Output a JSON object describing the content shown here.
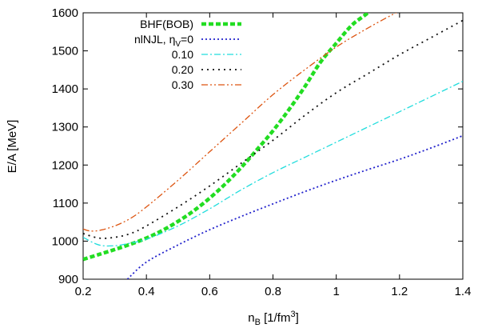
{
  "chart_data": {
    "type": "line",
    "xlabel": "n_B [1/fm^3]",
    "ylabel": "E/A [MeV]",
    "xlim": [
      0.2,
      1.4
    ],
    "ylim": [
      900,
      1600
    ],
    "xticks": [
      0.2,
      0.4,
      0.6,
      0.8,
      1.0,
      1.2,
      1.4
    ],
    "xtick_labels": [
      "0.2",
      "0.4",
      "0.6",
      "0.8",
      "1",
      "1.2",
      "1.4"
    ],
    "yticks": [
      900,
      1000,
      1100,
      1200,
      1300,
      1400,
      1500,
      1600
    ],
    "ytick_labels": [
      "900",
      "1000",
      "1100",
      "1200",
      "1300",
      "1400",
      "1500",
      "1600"
    ],
    "grid": false,
    "legend_position": "top-left",
    "series": [
      {
        "name": "BHF(BOB)",
        "color": "#22dd22",
        "dash": "dotted-thick",
        "x": [
          0.2,
          0.25,
          0.3,
          0.35,
          0.4,
          0.45,
          0.5,
          0.55,
          0.6,
          0.65,
          0.7,
          0.75,
          0.8,
          0.85,
          0.9,
          0.95,
          1.0,
          1.05,
          1.1,
          1.15,
          1.2
        ],
        "y": [
          952,
          965,
          978,
          992,
          1008,
          1028,
          1052,
          1080,
          1113,
          1151,
          1194,
          1241,
          1290,
          1345,
          1405,
          1470,
          1520,
          1568,
          1600,
          1640,
          1680
        ]
      },
      {
        "name": "nlNJL, η_V=0",
        "color": "#2222cc",
        "dash": "dotted",
        "x": [
          0.34,
          0.4,
          0.5,
          0.6,
          0.7,
          0.8,
          0.9,
          1.0,
          1.1,
          1.2,
          1.3,
          1.4
        ],
        "y": [
          900,
          945,
          990,
          1030,
          1065,
          1098,
          1130,
          1160,
          1188,
          1215,
          1245,
          1277
        ]
      },
      {
        "name": "0.10",
        "color": "#22dddd",
        "dash": "dash-dot",
        "x": [
          0.2,
          0.25,
          0.3,
          0.35,
          0.4,
          0.5,
          0.6,
          0.7,
          0.8,
          0.9,
          1.0,
          1.1,
          1.2,
          1.3,
          1.4
        ],
        "y": [
          1010,
          990,
          988,
          995,
          1005,
          1040,
          1085,
          1135,
          1180,
          1220,
          1260,
          1300,
          1340,
          1380,
          1420
        ]
      },
      {
        "name": "0.20",
        "color": "#111111",
        "dash": "sparse-dotted",
        "x": [
          0.2,
          0.25,
          0.3,
          0.35,
          0.4,
          0.5,
          0.6,
          0.7,
          0.8,
          0.9,
          1.0,
          1.1,
          1.2,
          1.3,
          1.4
        ],
        "y": [
          1020,
          1008,
          1010,
          1020,
          1040,
          1090,
          1145,
          1205,
          1265,
          1330,
          1390,
          1440,
          1490,
          1535,
          1580
        ]
      },
      {
        "name": "0.30",
        "color": "#dd5511",
        "dash": "dash-dot-dot",
        "x": [
          0.2,
          0.22,
          0.25,
          0.3,
          0.35,
          0.4,
          0.5,
          0.6,
          0.7,
          0.8,
          0.9,
          1.0,
          1.1,
          1.2,
          1.25
        ],
        "y": [
          1032,
          1027,
          1028,
          1040,
          1060,
          1090,
          1160,
          1235,
          1310,
          1385,
          1450,
          1510,
          1560,
          1605,
          1625
        ]
      }
    ]
  }
}
